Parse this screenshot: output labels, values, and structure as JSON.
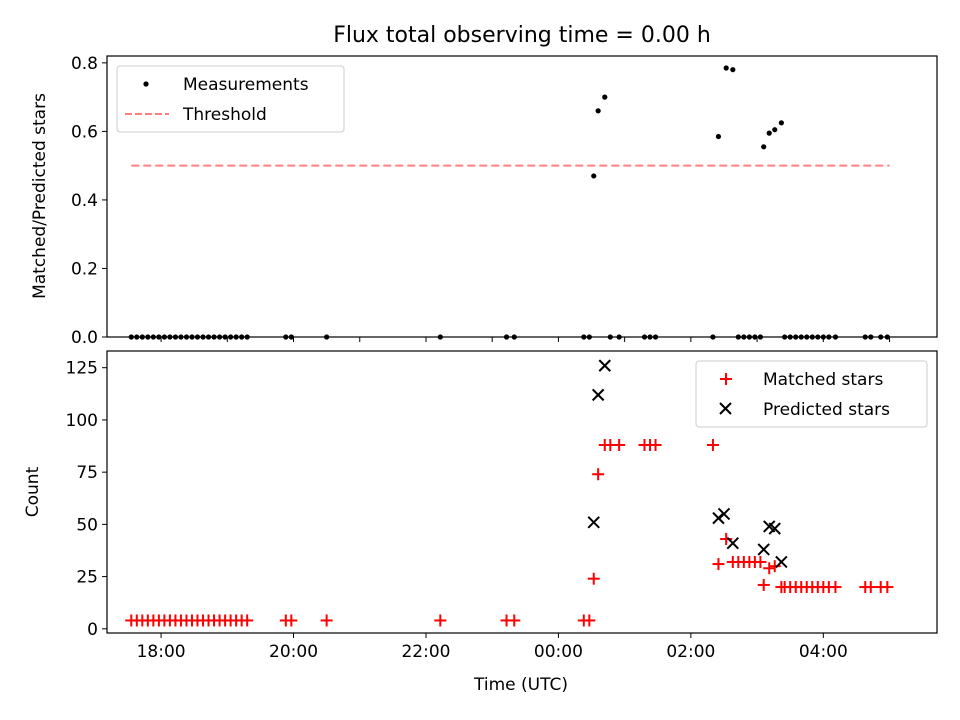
{
  "chart_data": [
    {
      "type": "scatter",
      "title": "Flux total observing time = 0.00 h",
      "xlabel": "",
      "ylabel": "Matched/Predicted stars",
      "xlim": [
        "17:11",
        "05:43"
      ],
      "ylim": [
        0,
        0.82
      ],
      "yticks": [
        "0.0",
        "0.2",
        "0.4",
        "0.6",
        "0.8"
      ],
      "legend": {
        "position": "top-left",
        "entries": [
          "Measurements",
          "Threshold"
        ]
      },
      "colors": {
        "measurements": "#000000",
        "threshold": "#ff7f7f"
      },
      "threshold": {
        "value": 0.5,
        "x_start": "17:33",
        "x_end": "05:00"
      },
      "series": [
        {
          "name": "Measurements",
          "points": [
            [
              "17:33",
              0
            ],
            [
              "17:38",
              0
            ],
            [
              "17:43",
              0
            ],
            [
              "17:48",
              0
            ],
            [
              "17:53",
              0
            ],
            [
              "17:58",
              0
            ],
            [
              "18:03",
              0
            ],
            [
              "18:08",
              0
            ],
            [
              "18:13",
              0
            ],
            [
              "18:18",
              0
            ],
            [
              "18:23",
              0
            ],
            [
              "18:28",
              0
            ],
            [
              "18:33",
              0
            ],
            [
              "18:38",
              0
            ],
            [
              "18:43",
              0
            ],
            [
              "18:48",
              0
            ],
            [
              "18:53",
              0
            ],
            [
              "18:58",
              0
            ],
            [
              "19:03",
              0
            ],
            [
              "19:08",
              0
            ],
            [
              "19:13",
              0
            ],
            [
              "19:18",
              0
            ],
            [
              "19:53",
              0
            ],
            [
              "19:58",
              0
            ],
            [
              "20:30",
              0
            ],
            [
              "22:13",
              0
            ],
            [
              "23:13",
              0
            ],
            [
              "23:20",
              0
            ],
            [
              "00:23",
              0
            ],
            [
              "00:28",
              0
            ],
            [
              "00:32",
              0.47
            ],
            [
              "00:36",
              0.66
            ],
            [
              "00:42",
              0.7
            ],
            [
              "00:47",
              0
            ],
            [
              "00:55",
              0
            ],
            [
              "01:18",
              0
            ],
            [
              "01:23",
              0
            ],
            [
              "01:28",
              0
            ],
            [
              "02:20",
              0
            ],
            [
              "02:25",
              0.585
            ],
            [
              "02:32",
              0.785
            ],
            [
              "02:38",
              0.78
            ],
            [
              "02:43",
              0
            ],
            [
              "02:48",
              0
            ],
            [
              "02:53",
              0
            ],
            [
              "02:58",
              0
            ],
            [
              "03:03",
              0
            ],
            [
              "03:06",
              0.555
            ],
            [
              "03:11",
              0.595
            ],
            [
              "03:16",
              0.605
            ],
            [
              "03:22",
              0.625
            ],
            [
              "03:25",
              0
            ],
            [
              "03:30",
              0
            ],
            [
              "03:35",
              0
            ],
            [
              "03:40",
              0
            ],
            [
              "03:45",
              0
            ],
            [
              "03:50",
              0
            ],
            [
              "03:55",
              0
            ],
            [
              "04:00",
              0
            ],
            [
              "04:05",
              0
            ],
            [
              "04:11",
              0
            ],
            [
              "04:38",
              0
            ],
            [
              "04:43",
              0
            ],
            [
              "04:52",
              0
            ],
            [
              "04:58",
              0
            ]
          ]
        }
      ]
    },
    {
      "type": "scatter",
      "title": "",
      "xlabel": "Time (UTC)",
      "ylabel": "Count",
      "xlim": [
        "17:11",
        "05:43"
      ],
      "ylim": [
        -2,
        133
      ],
      "yticks": [
        "0",
        "25",
        "50",
        "75",
        "100",
        "125"
      ],
      "xticks": [
        "18:00",
        "20:00",
        "22:00",
        "00:00",
        "02:00",
        "04:00"
      ],
      "legend": {
        "position": "top-right",
        "entries": [
          "Matched stars",
          "Predicted stars"
        ]
      },
      "colors": {
        "matched": "#ff0000",
        "predicted": "#000000"
      },
      "series": [
        {
          "name": "Matched stars",
          "points": [
            [
              "17:33",
              4
            ],
            [
              "17:38",
              4
            ],
            [
              "17:43",
              4
            ],
            [
              "17:48",
              4
            ],
            [
              "17:53",
              4
            ],
            [
              "17:58",
              4
            ],
            [
              "18:03",
              4
            ],
            [
              "18:08",
              4
            ],
            [
              "18:13",
              4
            ],
            [
              "18:18",
              4
            ],
            [
              "18:23",
              4
            ],
            [
              "18:28",
              4
            ],
            [
              "18:33",
              4
            ],
            [
              "18:38",
              4
            ],
            [
              "18:43",
              4
            ],
            [
              "18:48",
              4
            ],
            [
              "18:53",
              4
            ],
            [
              "18:58",
              4
            ],
            [
              "19:03",
              4
            ],
            [
              "19:08",
              4
            ],
            [
              "19:13",
              4
            ],
            [
              "19:18",
              4
            ],
            [
              "19:53",
              4
            ],
            [
              "19:58",
              4
            ],
            [
              "20:30",
              4
            ],
            [
              "22:13",
              4
            ],
            [
              "23:13",
              4
            ],
            [
              "23:20",
              4
            ],
            [
              "00:23",
              4
            ],
            [
              "00:28",
              4
            ],
            [
              "00:32",
              24
            ],
            [
              "00:36",
              74
            ],
            [
              "00:42",
              88
            ],
            [
              "00:47",
              88
            ],
            [
              "00:55",
              88
            ],
            [
              "01:18",
              88
            ],
            [
              "01:23",
              88
            ],
            [
              "01:28",
              88
            ],
            [
              "02:20",
              88
            ],
            [
              "02:25",
              31
            ],
            [
              "02:32",
              43
            ],
            [
              "02:38",
              32
            ],
            [
              "02:43",
              32
            ],
            [
              "02:48",
              32
            ],
            [
              "02:53",
              32
            ],
            [
              "02:58",
              32
            ],
            [
              "03:03",
              32
            ],
            [
              "03:06",
              21
            ],
            [
              "03:11",
              29
            ],
            [
              "03:16",
              30
            ],
            [
              "03:22",
              20
            ],
            [
              "03:25",
              20
            ],
            [
              "03:30",
              20
            ],
            [
              "03:35",
              20
            ],
            [
              "03:40",
              20
            ],
            [
              "03:45",
              20
            ],
            [
              "03:50",
              20
            ],
            [
              "03:55",
              20
            ],
            [
              "04:00",
              20
            ],
            [
              "04:05",
              20
            ],
            [
              "04:11",
              20
            ],
            [
              "04:38",
              20
            ],
            [
              "04:43",
              20
            ],
            [
              "04:52",
              20
            ],
            [
              "04:58",
              20
            ]
          ]
        },
        {
          "name": "Predicted stars",
          "points": [
            [
              "00:32",
              51
            ],
            [
              "00:36",
              112
            ],
            [
              "00:42",
              126
            ],
            [
              "02:25",
              53
            ],
            [
              "02:30",
              55
            ],
            [
              "02:38",
              41
            ],
            [
              "03:06",
              38
            ],
            [
              "03:11",
              49
            ],
            [
              "03:16",
              48
            ],
            [
              "03:22",
              32
            ]
          ]
        }
      ]
    }
  ]
}
